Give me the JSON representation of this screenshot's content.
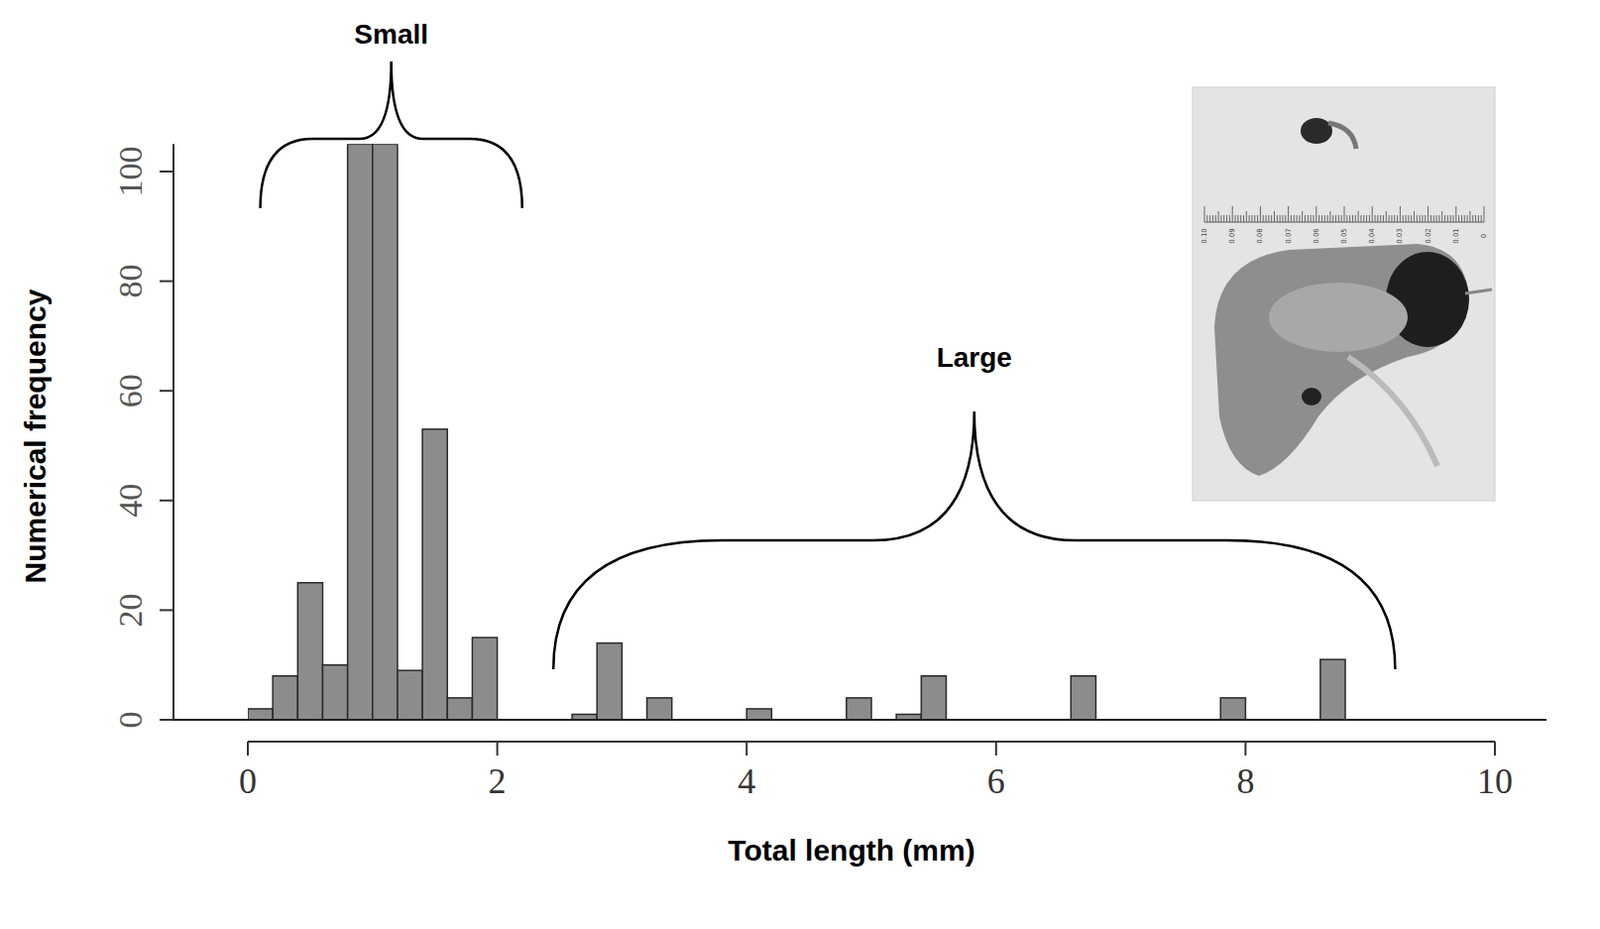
{
  "chart_data": {
    "type": "histogram",
    "xlabel": "Total length (mm)",
    "ylabel": "Numerical frequency",
    "bins": [
      0,
      0.2,
      0.4,
      0.6,
      0.8,
      1.0,
      1.2,
      1.4,
      1.6,
      1.8,
      2.0,
      2.2,
      2.4,
      2.6,
      2.8,
      3.0,
      3.2,
      3.4,
      3.6,
      3.8,
      4.0,
      4.2,
      4.4,
      4.6,
      4.8,
      5.0,
      5.2,
      5.4,
      5.6,
      5.8,
      6.0,
      6.2,
      6.4,
      6.6,
      6.8,
      7.0,
      7.2,
      7.4,
      7.6,
      7.8,
      8.0,
      8.2,
      8.4,
      8.6,
      8.8,
      9.0,
      9.2,
      9.4,
      9.6,
      9.8,
      10.0
    ],
    "values": [
      2,
      8,
      25,
      10,
      105,
      105,
      9,
      53,
      4,
      15,
      0,
      0,
      0,
      1,
      14,
      0,
      4,
      0,
      0,
      0,
      2,
      0,
      0,
      0,
      4,
      0,
      1,
      8,
      0,
      0,
      0,
      0,
      0,
      8,
      0,
      0,
      0,
      0,
      0,
      4,
      0,
      0,
      0,
      11,
      0,
      0,
      0,
      0,
      0,
      0
    ],
    "color": "#8c8c8c",
    "xlim": [
      0,
      10
    ],
    "xticks": [
      0,
      2,
      4,
      6,
      8,
      10
    ],
    "ylim": [
      0,
      105
    ],
    "yticks": [
      0,
      20,
      40,
      60,
      80,
      100
    ],
    "grid": false,
    "annotations": [
      {
        "text": "Small",
        "x": [
          0.1,
          2.2
        ]
      },
      {
        "text": "Large",
        "x": [
          2.45,
          9.2
        ]
      }
    ],
    "inset": {
      "ruler_labels": [
        "0.10",
        "0.09",
        "0.08",
        "0.07",
        "0.06",
        "0.05",
        "0.04",
        "0.03",
        "0.02",
        "0.01",
        "0"
      ]
    }
  }
}
